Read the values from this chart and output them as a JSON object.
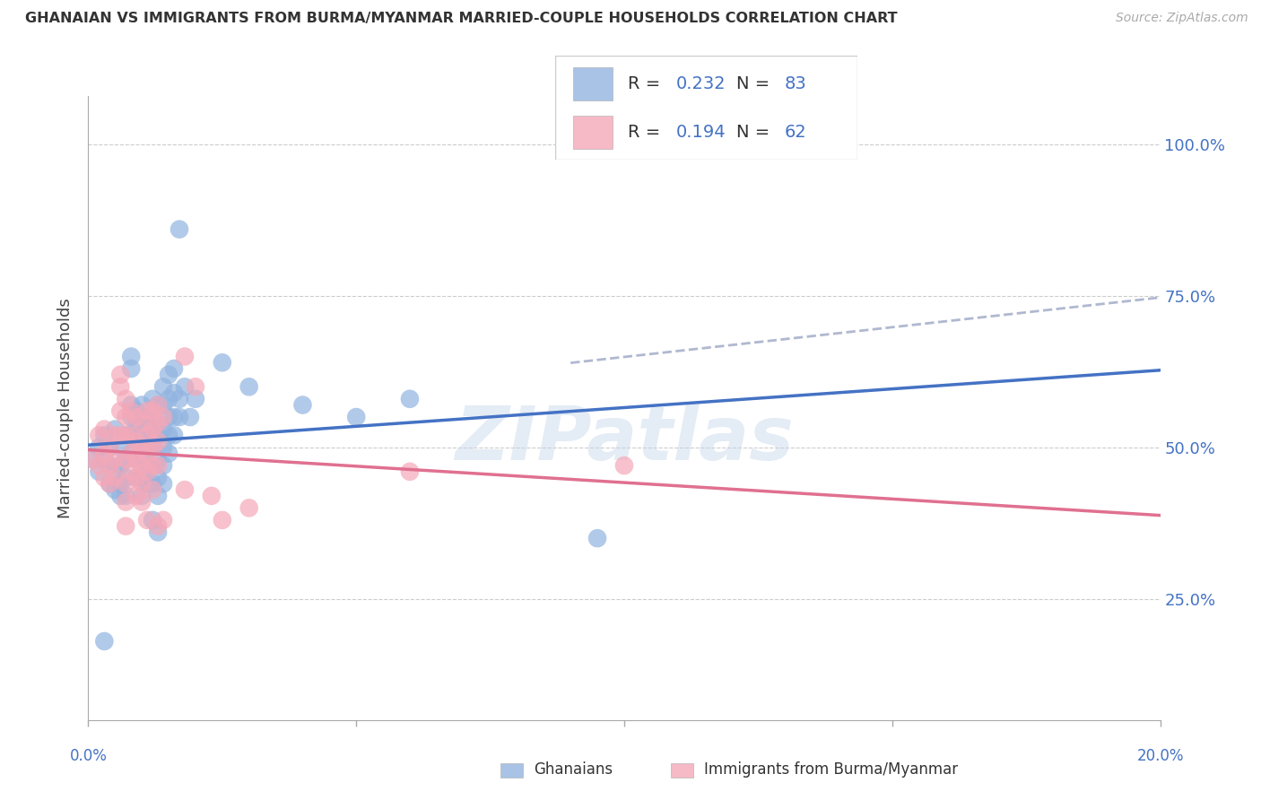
{
  "title": "GHANAIAN VS IMMIGRANTS FROM BURMA/MYANMAR MARRIED-COUPLE HOUSEHOLDS CORRELATION CHART",
  "source": "Source: ZipAtlas.com",
  "ylabel": "Married-couple Households",
  "ytick_labels": [
    "100.0%",
    "75.0%",
    "50.0%",
    "25.0%"
  ],
  "ytick_values": [
    1.0,
    0.75,
    0.5,
    0.25
  ],
  "xlim": [
    0.0,
    0.2
  ],
  "ylim": [
    0.05,
    1.08
  ],
  "blue_color": "#92b4e0",
  "pink_color": "#f4a8b8",
  "trendline_blue": "#4472c4",
  "trendline_pink": "#e07090",
  "trendline_dash_color": "#b0b8d0",
  "legend_R_blue": "0.232",
  "legend_N_blue": "83",
  "legend_R_pink": "0.194",
  "legend_N_pink": "62",
  "watermark": "ZIPatlas",
  "blue_scatter": [
    [
      0.001,
      0.48
    ],
    [
      0.002,
      0.5
    ],
    [
      0.002,
      0.46
    ],
    [
      0.003,
      0.52
    ],
    [
      0.003,
      0.48
    ],
    [
      0.004,
      0.5
    ],
    [
      0.004,
      0.44
    ],
    [
      0.004,
      0.47
    ],
    [
      0.005,
      0.53
    ],
    [
      0.005,
      0.46
    ],
    [
      0.005,
      0.43
    ],
    [
      0.006,
      0.5
    ],
    [
      0.006,
      0.47
    ],
    [
      0.006,
      0.44
    ],
    [
      0.006,
      0.42
    ],
    [
      0.007,
      0.48
    ],
    [
      0.007,
      0.45
    ],
    [
      0.007,
      0.52
    ],
    [
      0.007,
      0.42
    ],
    [
      0.008,
      0.65
    ],
    [
      0.008,
      0.63
    ],
    [
      0.008,
      0.57
    ],
    [
      0.008,
      0.55
    ],
    [
      0.008,
      0.52
    ],
    [
      0.008,
      0.49
    ],
    [
      0.009,
      0.56
    ],
    [
      0.009,
      0.54
    ],
    [
      0.009,
      0.51
    ],
    [
      0.009,
      0.48
    ],
    [
      0.009,
      0.45
    ],
    [
      0.01,
      0.57
    ],
    [
      0.01,
      0.54
    ],
    [
      0.01,
      0.52
    ],
    [
      0.01,
      0.48
    ],
    [
      0.01,
      0.45
    ],
    [
      0.01,
      0.42
    ],
    [
      0.011,
      0.55
    ],
    [
      0.011,
      0.53
    ],
    [
      0.011,
      0.5
    ],
    [
      0.011,
      0.47
    ],
    [
      0.011,
      0.44
    ],
    [
      0.012,
      0.58
    ],
    [
      0.012,
      0.54
    ],
    [
      0.012,
      0.52
    ],
    [
      0.012,
      0.5
    ],
    [
      0.012,
      0.47
    ],
    [
      0.012,
      0.44
    ],
    [
      0.012,
      0.38
    ],
    [
      0.013,
      0.57
    ],
    [
      0.013,
      0.54
    ],
    [
      0.013,
      0.52
    ],
    [
      0.013,
      0.48
    ],
    [
      0.013,
      0.45
    ],
    [
      0.013,
      0.42
    ],
    [
      0.013,
      0.36
    ],
    [
      0.014,
      0.6
    ],
    [
      0.014,
      0.57
    ],
    [
      0.014,
      0.53
    ],
    [
      0.014,
      0.5
    ],
    [
      0.014,
      0.47
    ],
    [
      0.014,
      0.44
    ],
    [
      0.015,
      0.62
    ],
    [
      0.015,
      0.58
    ],
    [
      0.015,
      0.55
    ],
    [
      0.015,
      0.52
    ],
    [
      0.015,
      0.49
    ],
    [
      0.016,
      0.63
    ],
    [
      0.016,
      0.59
    ],
    [
      0.016,
      0.55
    ],
    [
      0.016,
      0.52
    ],
    [
      0.017,
      0.86
    ],
    [
      0.017,
      0.58
    ],
    [
      0.017,
      0.55
    ],
    [
      0.018,
      0.6
    ],
    [
      0.019,
      0.55
    ],
    [
      0.02,
      0.58
    ],
    [
      0.025,
      0.64
    ],
    [
      0.03,
      0.6
    ],
    [
      0.04,
      0.57
    ],
    [
      0.05,
      0.55
    ],
    [
      0.06,
      0.58
    ],
    [
      0.095,
      0.35
    ],
    [
      0.003,
      0.18
    ]
  ],
  "pink_scatter": [
    [
      0.001,
      0.48
    ],
    [
      0.002,
      0.52
    ],
    [
      0.002,
      0.47
    ],
    [
      0.003,
      0.53
    ],
    [
      0.003,
      0.49
    ],
    [
      0.003,
      0.45
    ],
    [
      0.004,
      0.5
    ],
    [
      0.004,
      0.47
    ],
    [
      0.004,
      0.44
    ],
    [
      0.005,
      0.52
    ],
    [
      0.005,
      0.48
    ],
    [
      0.005,
      0.45
    ],
    [
      0.006,
      0.62
    ],
    [
      0.006,
      0.6
    ],
    [
      0.006,
      0.56
    ],
    [
      0.006,
      0.52
    ],
    [
      0.007,
      0.58
    ],
    [
      0.007,
      0.55
    ],
    [
      0.007,
      0.52
    ],
    [
      0.007,
      0.48
    ],
    [
      0.007,
      0.44
    ],
    [
      0.007,
      0.41
    ],
    [
      0.007,
      0.37
    ],
    [
      0.008,
      0.56
    ],
    [
      0.008,
      0.52
    ],
    [
      0.008,
      0.49
    ],
    [
      0.008,
      0.46
    ],
    [
      0.009,
      0.55
    ],
    [
      0.009,
      0.51
    ],
    [
      0.009,
      0.48
    ],
    [
      0.009,
      0.45
    ],
    [
      0.009,
      0.42
    ],
    [
      0.01,
      0.54
    ],
    [
      0.01,
      0.5
    ],
    [
      0.01,
      0.47
    ],
    [
      0.01,
      0.44
    ],
    [
      0.01,
      0.41
    ],
    [
      0.011,
      0.56
    ],
    [
      0.011,
      0.52
    ],
    [
      0.011,
      0.49
    ],
    [
      0.011,
      0.46
    ],
    [
      0.011,
      0.38
    ],
    [
      0.012,
      0.56
    ],
    [
      0.012,
      0.53
    ],
    [
      0.012,
      0.5
    ],
    [
      0.012,
      0.47
    ],
    [
      0.012,
      0.43
    ],
    [
      0.013,
      0.57
    ],
    [
      0.013,
      0.54
    ],
    [
      0.013,
      0.51
    ],
    [
      0.013,
      0.47
    ],
    [
      0.013,
      0.37
    ],
    [
      0.014,
      0.55
    ],
    [
      0.014,
      0.38
    ],
    [
      0.018,
      0.65
    ],
    [
      0.018,
      0.43
    ],
    [
      0.02,
      0.6
    ],
    [
      0.023,
      0.42
    ],
    [
      0.025,
      0.38
    ],
    [
      0.03,
      0.4
    ],
    [
      0.06,
      0.46
    ],
    [
      0.1,
      0.47
    ]
  ]
}
